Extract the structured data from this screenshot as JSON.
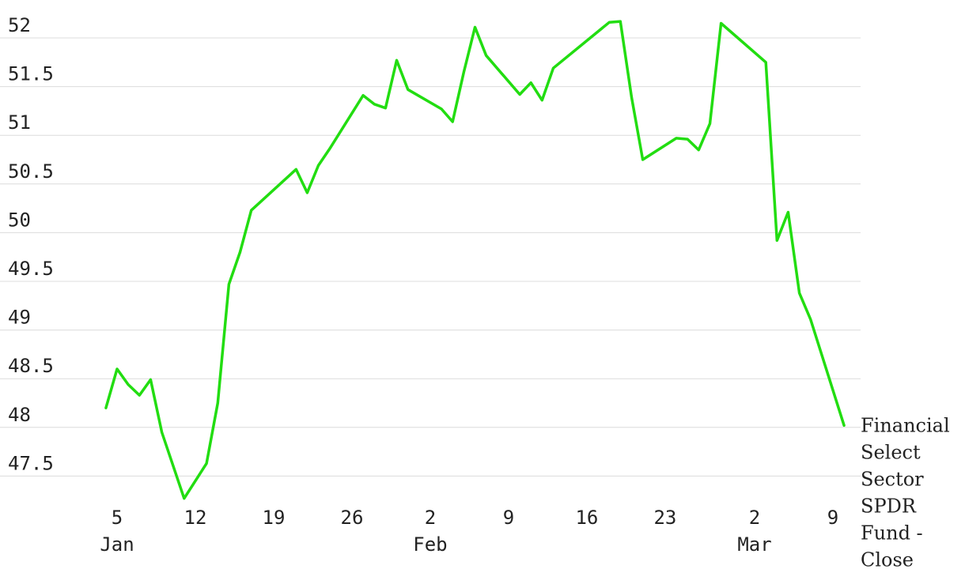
{
  "chart_data": {
    "type": "line",
    "title": "",
    "xlabel": "",
    "ylabel": "",
    "ylim": [
      47.2,
      52.2
    ],
    "grid": true,
    "y_ticks": [
      "52",
      "51.5",
      "51",
      "50.5",
      "50",
      "49.5",
      "49",
      "48.5",
      "48",
      "47.5"
    ],
    "x_ticks": [
      {
        "date": "2016-01-05",
        "day": "5",
        "month": "Jan"
      },
      {
        "date": "2016-01-12",
        "day": "12",
        "month": ""
      },
      {
        "date": "2016-01-19",
        "day": "19",
        "month": ""
      },
      {
        "date": "2016-01-26",
        "day": "26",
        "month": ""
      },
      {
        "date": "2016-02-02",
        "day": "2",
        "month": "Feb"
      },
      {
        "date": "2016-02-09",
        "day": "9",
        "month": ""
      },
      {
        "date": "2016-02-16",
        "day": "16",
        "month": ""
      },
      {
        "date": "2016-02-23",
        "day": "23",
        "month": ""
      },
      {
        "date": "2016-03-02",
        "day": "2",
        "month": "Mar"
      },
      {
        "date": "2016-03-09",
        "day": "9",
        "month": ""
      }
    ],
    "series": [
      {
        "name": "Financial Select Sector SPDR Fund - Close",
        "label_lines": [
          "Financial",
          "Select",
          "Sector",
          "SPDR",
          "Fund -",
          "Close"
        ],
        "color": "#22dd11",
        "x": [
          "2016-01-04",
          "2016-01-05",
          "2016-01-06",
          "2016-01-07",
          "2016-01-08",
          "2016-01-09",
          "2016-01-11",
          "2016-01-13",
          "2016-01-14",
          "2016-01-15",
          "2016-01-16",
          "2016-01-17",
          "2016-01-21",
          "2016-01-22",
          "2016-01-23",
          "2016-01-24",
          "2016-01-27",
          "2016-01-28",
          "2016-01-29",
          "2016-01-30",
          "2016-01-31",
          "2016-02-03",
          "2016-02-04",
          "2016-02-05",
          "2016-02-06",
          "2016-02-07",
          "2016-02-10",
          "2016-02-11",
          "2016-02-12",
          "2016-02-13",
          "2016-02-18",
          "2016-02-19",
          "2016-02-20",
          "2016-02-21",
          "2016-02-24",
          "2016-02-25",
          "2016-02-26",
          "2016-02-27",
          "2016-02-28",
          "2016-03-03",
          "2016-03-04",
          "2016-03-05",
          "2016-03-06",
          "2016-03-07",
          "2016-03-10"
        ],
        "values": [
          48.2,
          48.6,
          48.44,
          48.33,
          48.49,
          47.95,
          47.27,
          47.63,
          48.25,
          49.47,
          49.8,
          50.23,
          50.65,
          50.41,
          50.69,
          50.86,
          51.41,
          51.32,
          51.28,
          51.77,
          51.47,
          51.27,
          51.14,
          51.65,
          52.11,
          51.82,
          51.42,
          51.54,
          51.36,
          51.69,
          52.16,
          52.17,
          51.39,
          50.75,
          50.97,
          50.96,
          50.85,
          51.12,
          52.15,
          51.75,
          49.92,
          50.21,
          49.38,
          49.11,
          48.02
        ]
      }
    ]
  }
}
